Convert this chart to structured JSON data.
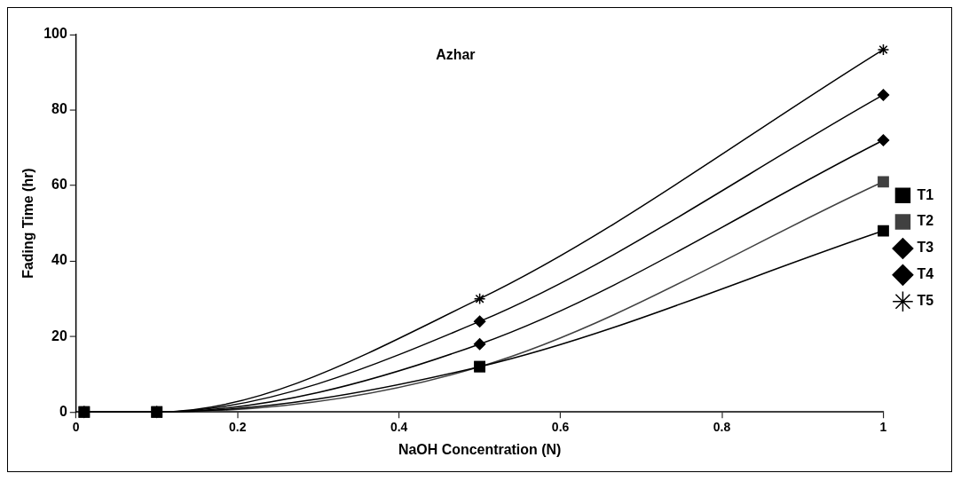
{
  "chart_data": {
    "type": "line",
    "xlabel": "NaOH Concentration (N)",
    "ylabel": "Fading Time (hr)",
    "annotations": [
      "Azhar"
    ],
    "x": [
      0.01,
      0.1,
      0.5,
      1
    ],
    "series": [
      {
        "name": "T1",
        "color": "#000000",
        "marker": "square",
        "values": [
          0,
          0,
          12,
          48
        ]
      },
      {
        "name": "T2",
        "color": "#404040",
        "marker": "square",
        "values": [
          0,
          0,
          12,
          61
        ]
      },
      {
        "name": "T3",
        "color": "#000000",
        "marker": "diamond",
        "values": [
          0,
          0,
          18,
          72
        ]
      },
      {
        "name": "T4",
        "color": "#000000",
        "marker": "diamond",
        "values": [
          0,
          0,
          24,
          84
        ]
      },
      {
        "name": "T5",
        "color": "#000000",
        "marker": "cross",
        "values": [
          0,
          0,
          30,
          96
        ]
      }
    ],
    "xlim": [
      0,
      1
    ],
    "xticks": [
      0,
      0.2,
      0.4,
      0.6,
      0.8,
      1
    ],
    "ylim": [
      0,
      100
    ],
    "yticks": [
      0,
      20,
      40,
      60,
      80,
      100
    ],
    "grid": false,
    "legend": "right",
    "line_style": "solid"
  }
}
